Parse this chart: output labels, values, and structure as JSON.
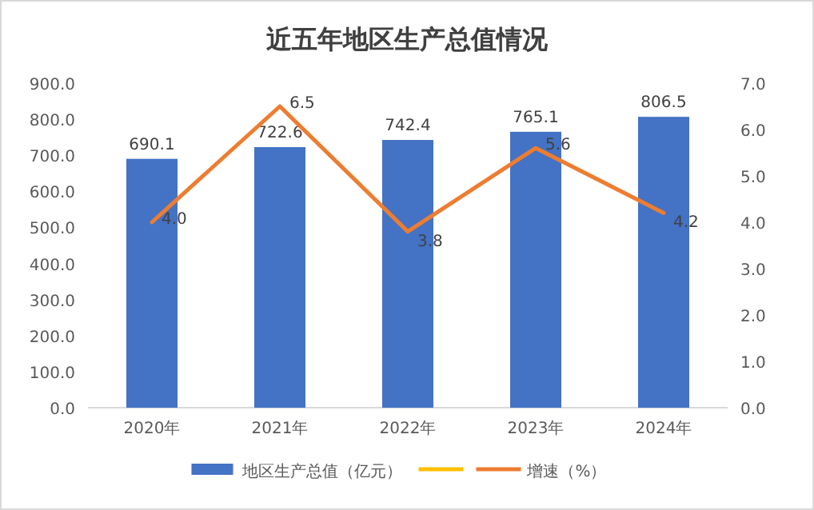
{
  "chart_data": {
    "type": "bar",
    "title": "近五年地区生产总值情况",
    "categories": [
      "2020年",
      "2021年",
      "2022年",
      "2023年",
      "2024年"
    ],
    "series": [
      {
        "name": "地区生产总值（亿元）",
        "color": "#4472c4",
        "values": [
          690.1,
          722.6,
          742.4,
          765.1,
          806.5
        ],
        "value_labels": [
          "690.1",
          "722.6",
          "742.4",
          "765.1",
          "806.5"
        ]
      },
      {
        "type": "line",
        "color": "#ffc000",
        "values": [
          null,
          null,
          null,
          null,
          null
        ]
      },
      {
        "name": "增速（%）",
        "type": "line",
        "axis": "y2",
        "color": "#ed7d31",
        "values": [
          4.0,
          6.5,
          3.8,
          5.6,
          4.2
        ],
        "value_labels": [
          "4.0",
          "6.5",
          "3.8",
          "5.6",
          "4.2"
        ]
      }
    ],
    "ylim": [
      0,
      900
    ],
    "yticks": [
      {
        "value": 0,
        "label": "0.0"
      },
      {
        "value": 100,
        "label": "100.0"
      },
      {
        "value": 200,
        "label": "200.0"
      },
      {
        "value": 300,
        "label": "300.0"
      },
      {
        "value": 400,
        "label": "400.0"
      },
      {
        "value": 500,
        "label": "500.0"
      },
      {
        "value": 600,
        "label": "600.0"
      },
      {
        "value": 700,
        "label": "700.0"
      },
      {
        "value": 800,
        "label": "800.0"
      },
      {
        "value": 900,
        "label": "900.0"
      }
    ],
    "y2lim": [
      0,
      7
    ],
    "y2ticks": [
      {
        "value": 0,
        "label": "0.0"
      },
      {
        "value": 1,
        "label": "1.0"
      },
      {
        "value": 2,
        "label": "2.0"
      },
      {
        "value": 3,
        "label": "3.0"
      },
      {
        "value": 4,
        "label": "4.0"
      },
      {
        "value": 5,
        "label": "5.0"
      },
      {
        "value": 6,
        "label": "6.0"
      },
      {
        "value": 7,
        "label": "7.0"
      }
    ],
    "grid": false,
    "legend": "bottom"
  }
}
